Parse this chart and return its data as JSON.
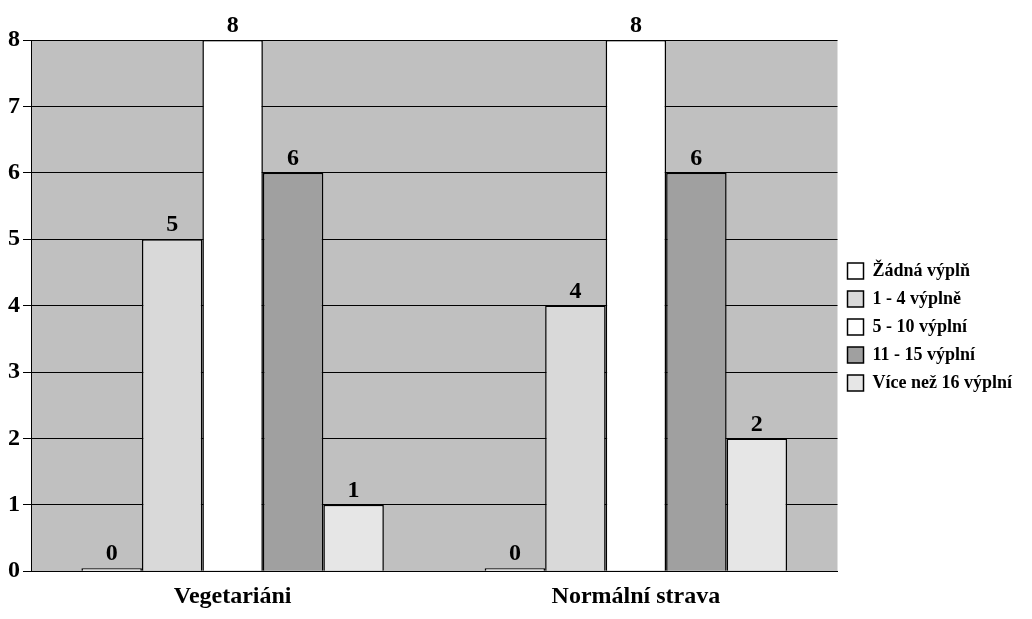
{
  "chart_data": {
    "type": "bar",
    "categories": [
      "Vegetariáni",
      "Normální strava"
    ],
    "series": [
      {
        "name": "Žádná výplň",
        "color": "#ffffff",
        "values": [
          0,
          0
        ]
      },
      {
        "name": "1 - 4 výplně",
        "color": "#d9d9d9",
        "values": [
          5,
          4
        ]
      },
      {
        "name": "5 - 10 výplní",
        "color": "#ffffff",
        "values": [
          8,
          8
        ]
      },
      {
        "name": "11 - 15 výplní",
        "color": "#a0a0a0",
        "values": [
          6,
          6
        ]
      },
      {
        "name": "Více než 16 výplní",
        "color": "#e6e6e6",
        "values": [
          1,
          2
        ]
      }
    ],
    "ylim": [
      0,
      8
    ],
    "yticks": [
      0,
      1,
      2,
      3,
      4,
      5,
      6,
      7,
      8
    ],
    "grid": "y",
    "legend": "right",
    "data_labels": true
  }
}
